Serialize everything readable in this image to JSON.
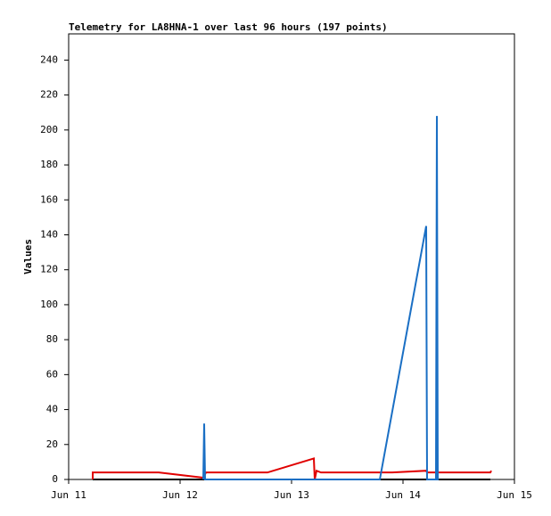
{
  "chart_data": {
    "type": "line",
    "title": "Telemetry for LA8HNA-1 over last 96 hours (197 points)",
    "y_label": "Values",
    "xlim": [
      11,
      15
    ],
    "xticks": [
      {
        "value": 11,
        "label": "Jun 11"
      },
      {
        "value": 12,
        "label": "Jun 12"
      },
      {
        "value": 13,
        "label": "Jun 13"
      },
      {
        "value": 14,
        "label": "Jun 14"
      },
      {
        "value": 15,
        "label": "Jun 15"
      }
    ],
    "ylim": [
      0,
      255
    ],
    "yticks": [
      0,
      20,
      40,
      60,
      80,
      100,
      120,
      140,
      160,
      180,
      200,
      220,
      240
    ],
    "grid": false,
    "series": [
      {
        "color": "#000000",
        "x": [
          11.216,
          14.784
        ],
        "values": [
          0,
          0
        ]
      },
      {
        "color": "#e00000",
        "x": [
          11.216,
          11.216,
          11.24,
          11.808,
          12.208,
          12.232,
          12.784,
          13.2,
          13.208,
          13.224,
          13.264,
          13.904,
          14.208,
          14.216,
          14.264,
          14.784,
          14.792
        ],
        "values": [
          0,
          4,
          4,
          4,
          1,
          4,
          4,
          12,
          0,
          5,
          4,
          4,
          5,
          4,
          4,
          4,
          5
        ]
      },
      {
        "color": "#1a6fc4",
        "x": [
          12.208,
          12.216,
          12.224,
          13.792,
          14.208,
          14.216,
          14.296,
          14.304,
          14.312,
          14.32
        ],
        "values": [
          0,
          32,
          0,
          0,
          145,
          0,
          0,
          208,
          0,
          0
        ]
      }
    ]
  }
}
